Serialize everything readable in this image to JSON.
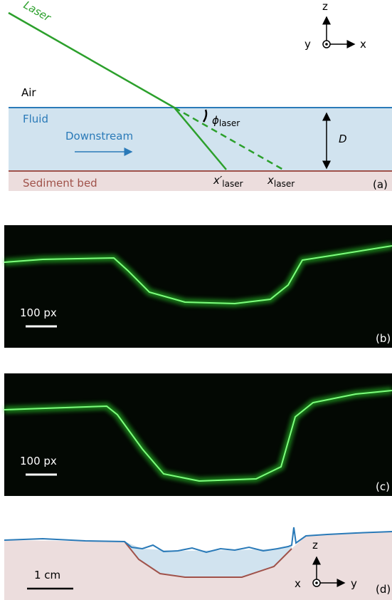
{
  "panel_a": {
    "laser": "Laser",
    "air": "Air",
    "fluid": "Fluid",
    "downstream": "Downstream",
    "sediment_bed": "Sediment bed",
    "phi": {
      "symbol": "ϕ",
      "subscript": "laser"
    },
    "depth": "D",
    "x_prime": {
      "symbol": "x′",
      "subscript": "laser"
    },
    "x": {
      "symbol": "x",
      "subscript": "laser"
    },
    "label": "(a)",
    "axes": {
      "z": "z",
      "x": "x",
      "y": "y"
    }
  },
  "panel_b": {
    "scale": "100 px",
    "label": "(b)"
  },
  "panel_c": {
    "scale": "100 px",
    "label": "(c)"
  },
  "panel_d": {
    "scale": "1 cm",
    "label": "(d)",
    "axes": {
      "z": "z",
      "x": "x",
      "y": "y"
    }
  }
}
